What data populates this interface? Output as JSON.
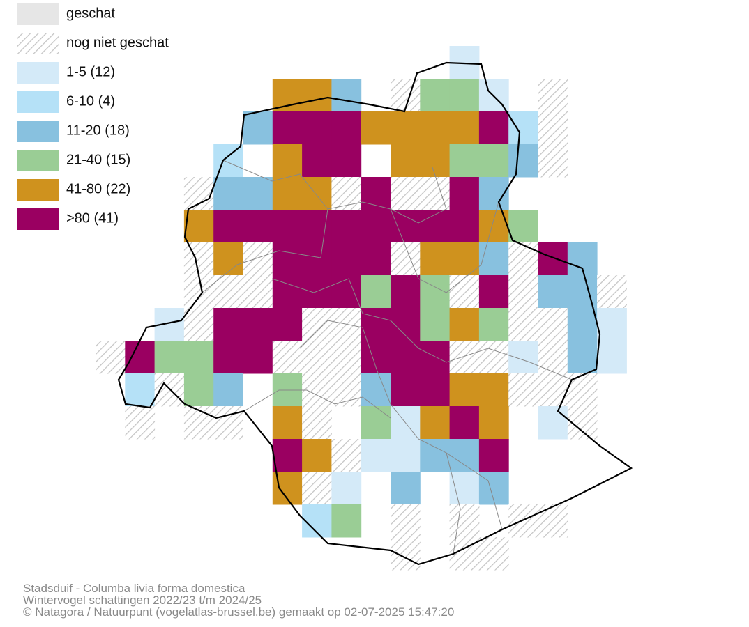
{
  "legend": [
    "geschat",
    "nog niet geschat",
    "1-5 (12)",
    "6-10 (4)",
    "11-20 (18)",
    "21-40 (15)",
    "41-80 (22)",
    ">80 (41)"
  ],
  "footer": [
    "Stadsduif - Columba livia forma domestica",
    "Wintervogel schattingen 2022/23 t/m 2024/25",
    "© Natagora / Natuurpunt (vogelatlas-brussel.be) gemaakt op 02-07-2025 15:47:20"
  ]
}
